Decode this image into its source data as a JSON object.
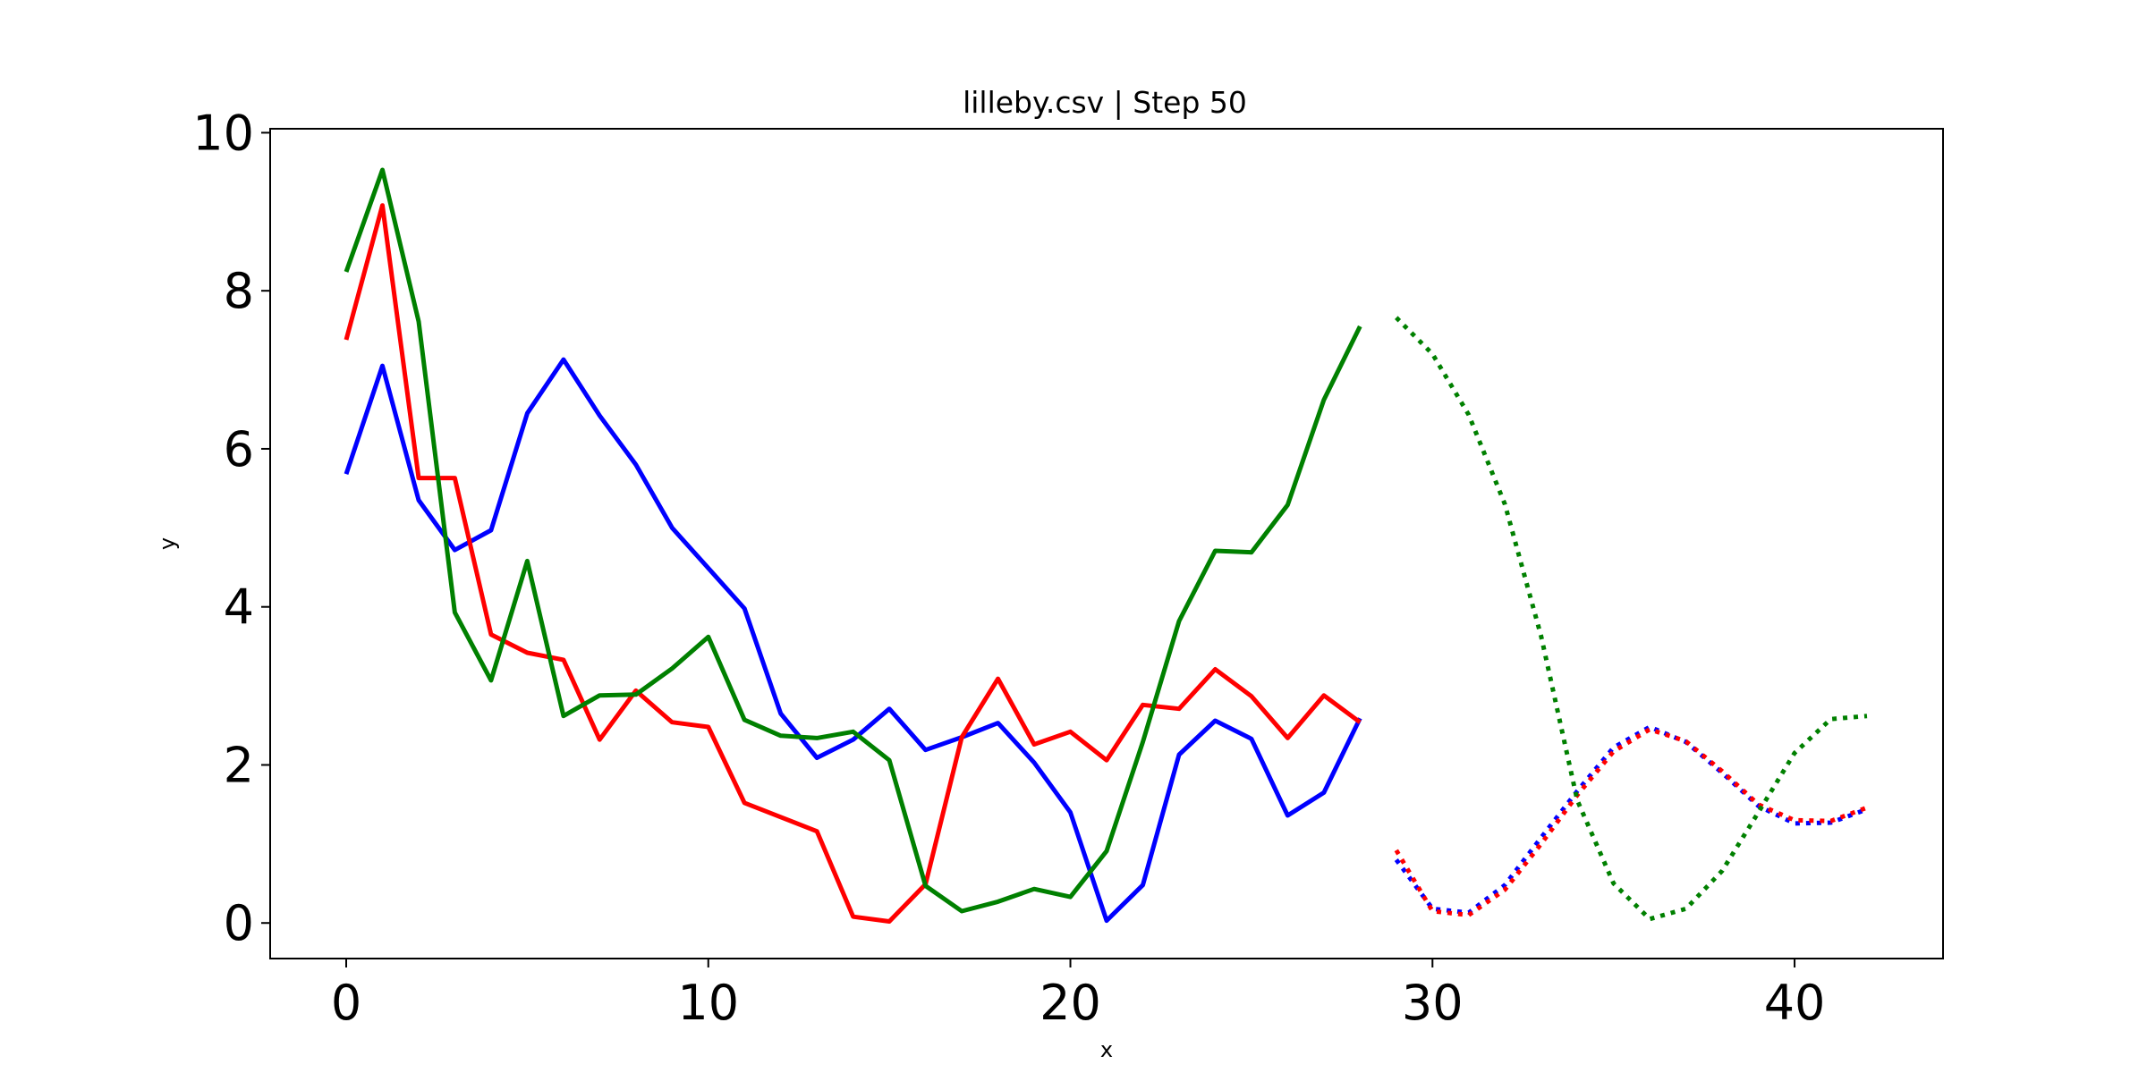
{
  "chart_data": {
    "type": "line",
    "title": "lilleby.csv | Step 50",
    "xlabel": "x",
    "ylabel": "y",
    "xlim": [
      -2.1,
      44.1
    ],
    "ylim": [
      -0.45,
      10.05
    ],
    "xticks": [
      0,
      10,
      20,
      30,
      40
    ],
    "yticks": [
      0,
      2,
      4,
      6,
      8,
      10
    ],
    "grid": false,
    "series": [
      {
        "color": "#0000ff",
        "style": "solid",
        "x": [
          0,
          1,
          2,
          3,
          4,
          5,
          6,
          7,
          8,
          9,
          10,
          11,
          12,
          13,
          14,
          15,
          16,
          17,
          18,
          19,
          20,
          21,
          22,
          23,
          24,
          25,
          26,
          27,
          28
        ],
        "y": [
          5.68,
          7.05,
          5.35,
          4.72,
          4.97,
          6.45,
          7.13,
          6.42,
          5.8,
          5.0,
          4.49,
          3.98,
          2.65,
          2.09,
          2.32,
          2.71,
          2.19,
          2.35,
          2.53,
          2.03,
          1.4,
          0.03,
          0.48,
          2.13,
          2.56,
          2.33,
          1.36,
          1.65,
          2.59
        ]
      },
      {
        "color": "#ff0000",
        "style": "solid",
        "x": [
          0,
          1,
          2,
          3,
          4,
          5,
          6,
          7,
          8,
          9,
          10,
          11,
          12,
          13,
          14,
          15,
          16,
          17,
          18,
          19,
          20,
          21,
          22,
          23,
          24,
          25,
          26,
          27,
          28
        ],
        "y": [
          7.38,
          9.08,
          5.63,
          5.63,
          3.65,
          3.42,
          3.33,
          2.32,
          2.94,
          2.54,
          2.48,
          1.52,
          1.34,
          1.16,
          0.08,
          0.02,
          0.49,
          2.35,
          3.09,
          2.26,
          2.42,
          2.06,
          2.76,
          2.71,
          3.21,
          2.87,
          2.34,
          2.88,
          2.54
        ]
      },
      {
        "color": "#008000",
        "style": "solid",
        "x": [
          0,
          1,
          2,
          3,
          4,
          5,
          6,
          7,
          8,
          9,
          10,
          11,
          12,
          13,
          14,
          15,
          16,
          17,
          18,
          19,
          20,
          21,
          22,
          23,
          24,
          25,
          26,
          27,
          28
        ],
        "y": [
          8.24,
          9.53,
          7.61,
          3.93,
          3.07,
          4.58,
          2.62,
          2.88,
          2.89,
          3.22,
          3.62,
          2.57,
          2.37,
          2.34,
          2.42,
          2.06,
          0.47,
          0.15,
          0.27,
          0.43,
          0.33,
          0.91,
          2.29,
          3.82,
          4.71,
          4.69,
          5.29,
          6.62,
          7.55
        ]
      },
      {
        "color": "#0000ff",
        "style": "dotted",
        "x": [
          29,
          30,
          31,
          32,
          33,
          34,
          35,
          36,
          37,
          38,
          39,
          40,
          41,
          42
        ],
        "y": [
          0.8,
          0.18,
          0.13,
          0.48,
          1.08,
          1.67,
          2.22,
          2.48,
          2.29,
          1.9,
          1.48,
          1.26,
          1.27,
          1.44
        ]
      },
      {
        "color": "#ff0000",
        "style": "dotted",
        "x": [
          29,
          30,
          31,
          32,
          33,
          34,
          35,
          36,
          37,
          38,
          39,
          40,
          41,
          42
        ],
        "y": [
          0.92,
          0.15,
          0.1,
          0.42,
          1.0,
          1.62,
          2.17,
          2.45,
          2.3,
          1.92,
          1.5,
          1.3,
          1.29,
          1.46
        ]
      },
      {
        "color": "#008000",
        "style": "dotted",
        "x": [
          29,
          30,
          31,
          32,
          33,
          34,
          35,
          36,
          37,
          38,
          39,
          40,
          41,
          42
        ],
        "y": [
          7.66,
          7.2,
          6.43,
          5.3,
          3.63,
          1.55,
          0.5,
          0.05,
          0.18,
          0.66,
          1.4,
          2.15,
          2.58,
          2.62
        ]
      }
    ]
  }
}
